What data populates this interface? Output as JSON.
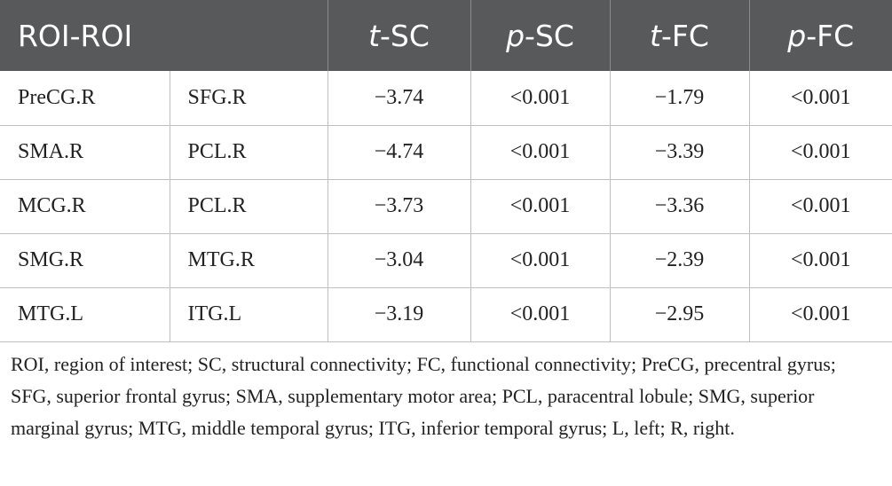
{
  "table": {
    "headers": {
      "roi": "ROI-ROI",
      "t_sc": {
        "italic": "t",
        "rest": "-SC"
      },
      "p_sc": {
        "italic": "p",
        "rest": "-SC"
      },
      "t_fc": {
        "italic": "t",
        "rest": "-FC"
      },
      "p_fc": {
        "italic": "p",
        "rest": "-FC"
      }
    },
    "rows": [
      {
        "roi_a": "PreCG.R",
        "roi_b": "SFG.R",
        "t_sc": "−3.74",
        "p_sc": "<0.001",
        "t_fc": "−1.79",
        "p_fc": "<0.001"
      },
      {
        "roi_a": "SMA.R",
        "roi_b": "PCL.R",
        "t_sc": "−4.74",
        "p_sc": "<0.001",
        "t_fc": "−3.39",
        "p_fc": "<0.001"
      },
      {
        "roi_a": "MCG.R",
        "roi_b": "PCL.R",
        "t_sc": "−3.73",
        "p_sc": "<0.001",
        "t_fc": "−3.36",
        "p_fc": "<0.001"
      },
      {
        "roi_a": "SMG.R",
        "roi_b": "MTG.R",
        "t_sc": "−3.04",
        "p_sc": "<0.001",
        "t_fc": "−2.39",
        "p_fc": "<0.001"
      },
      {
        "roi_a": "MTG.L",
        "roi_b": "ITG.L",
        "t_sc": "−3.19",
        "p_sc": "<0.001",
        "t_fc": "−2.95",
        "p_fc": "<0.001"
      }
    ]
  },
  "footnote": "ROI, region of interest; SC, structural connectivity; FC, functional connectivity; PreCG, precentral gyrus; SFG, superior frontal gyrus; SMA, supplementary motor area; PCL, paracentral lobule; SMG, superior marginal gyrus; MTG, middle temporal gyrus; ITG, inferior temporal gyrus; L, left; R, right.",
  "colors": {
    "header_bg": "#58595b",
    "header_text": "#ffffff",
    "grid": "#bfbfbf",
    "text": "#222222"
  }
}
